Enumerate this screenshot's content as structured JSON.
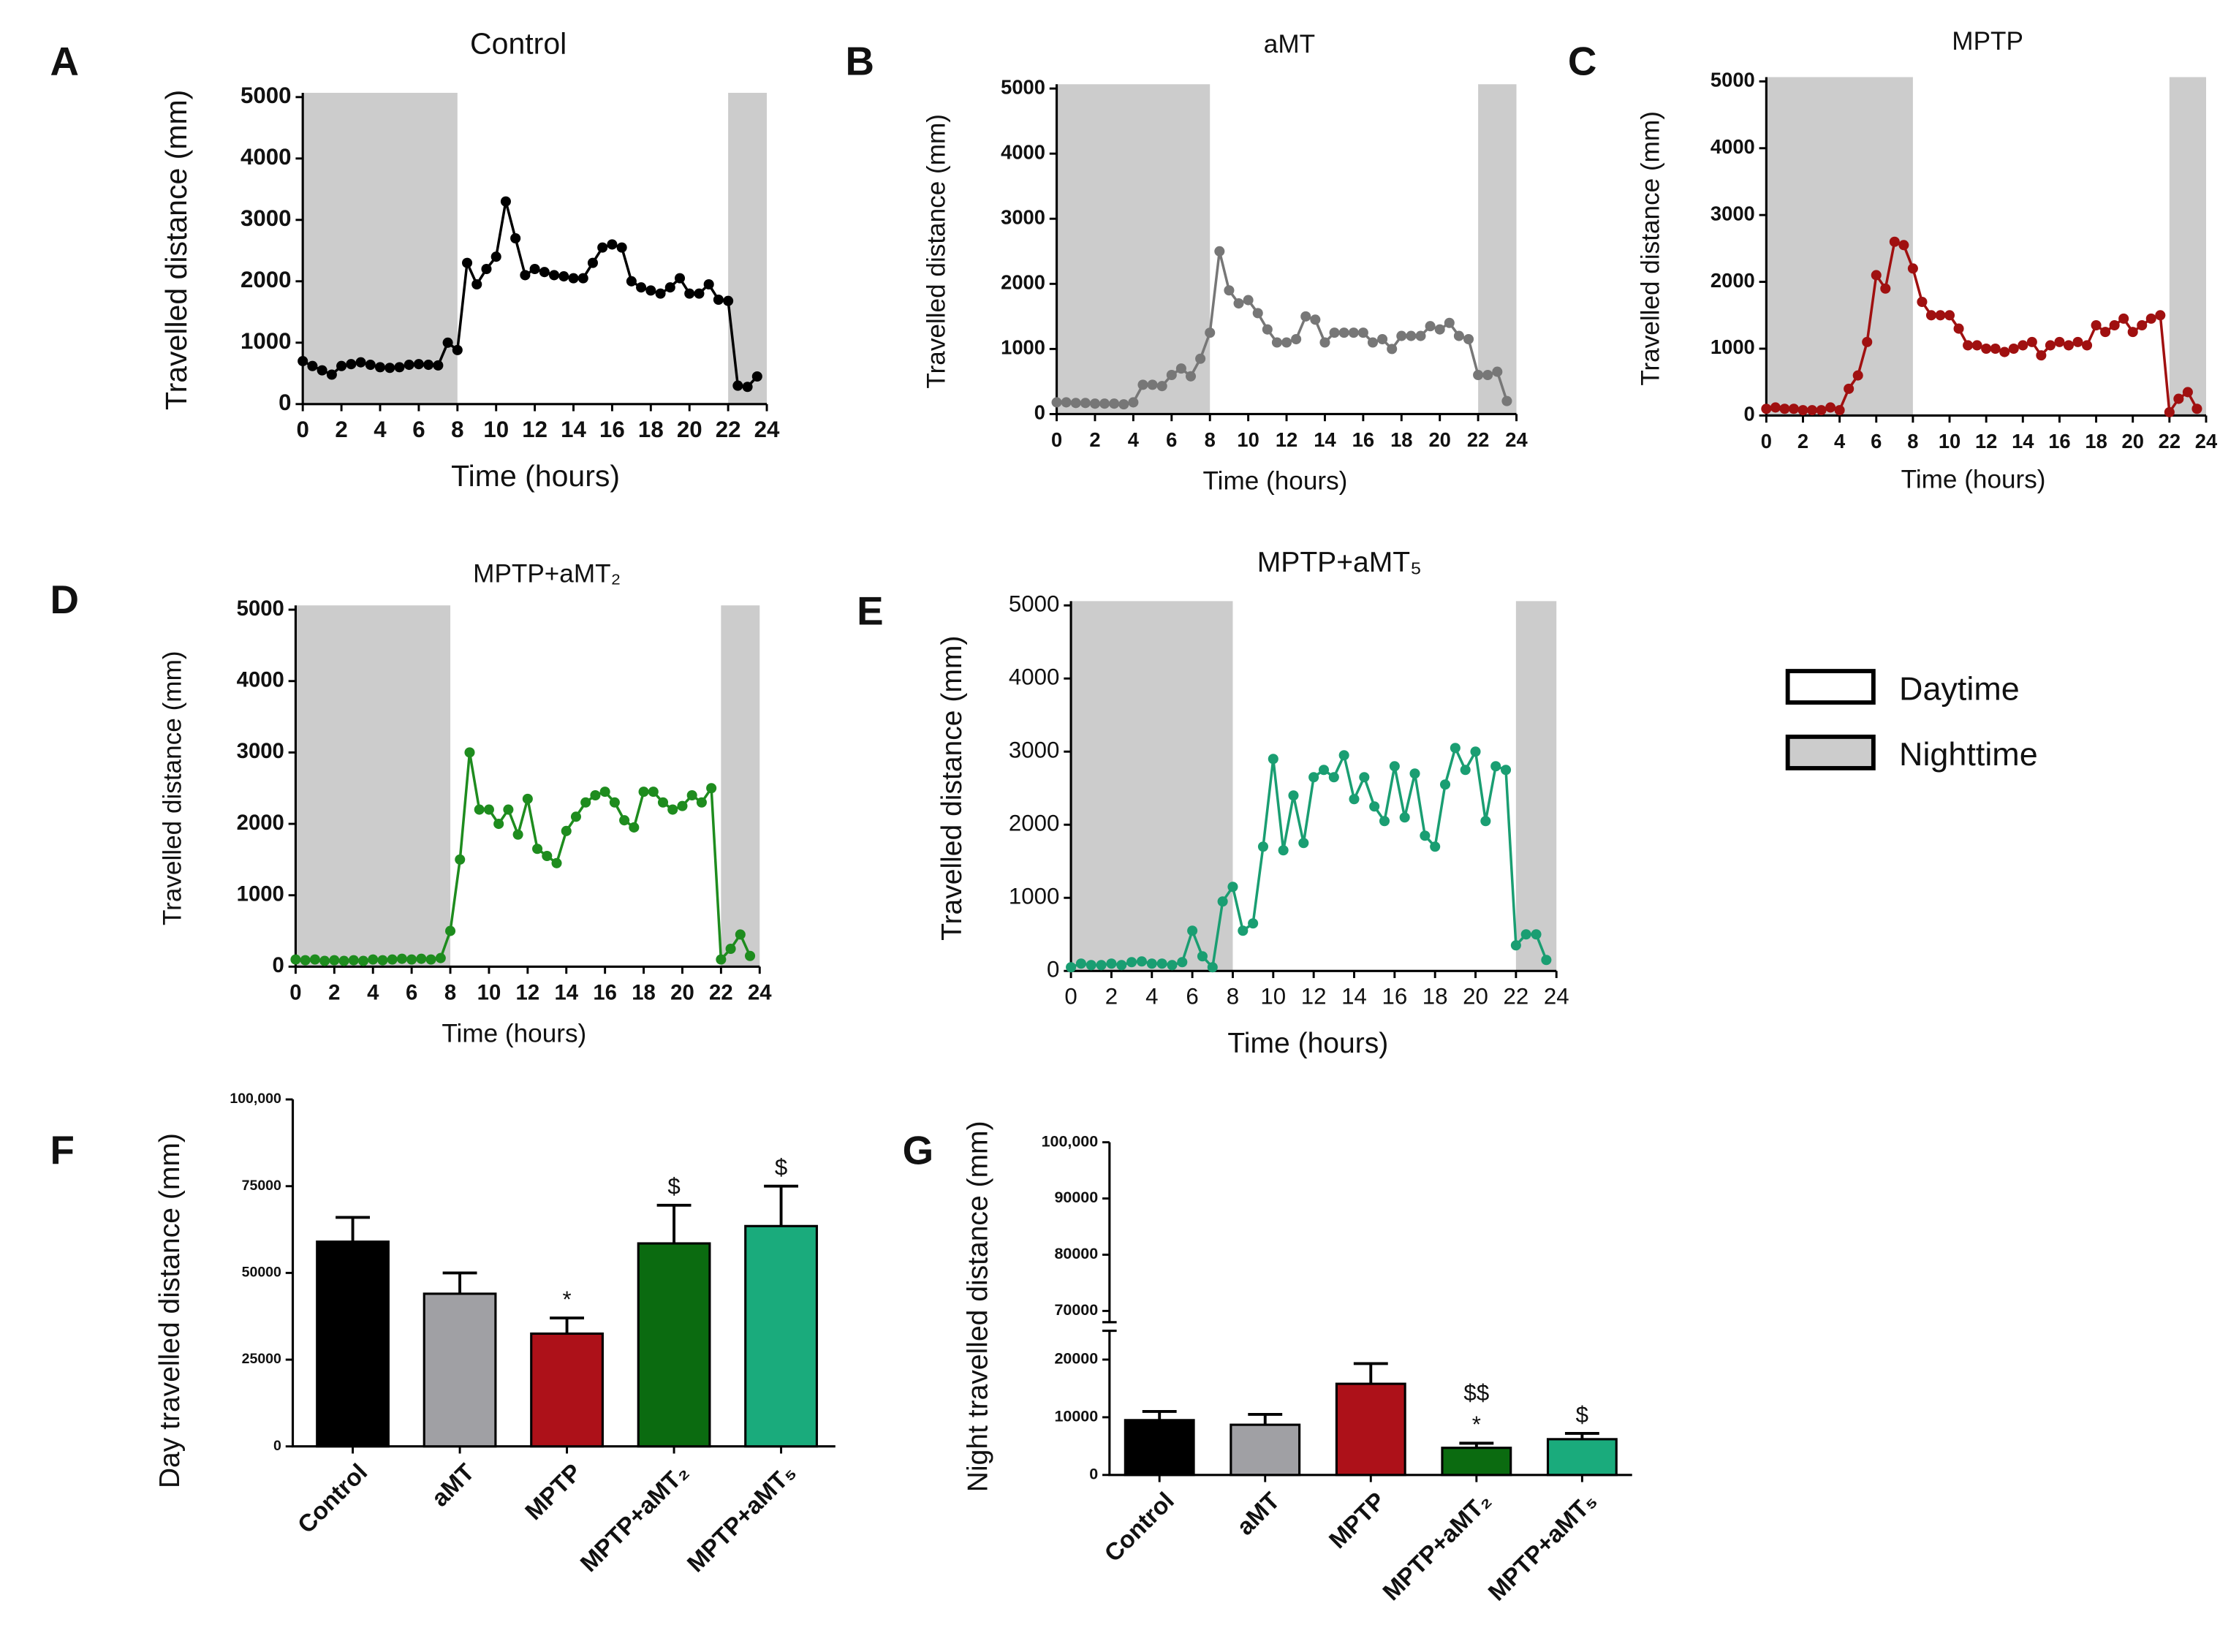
{
  "chart_data": [
    {
      "type": "line",
      "panel": "A",
      "title": "Control",
      "y_label": "Travelled distance (mm)",
      "x_label": "Time (hours)",
      "color": "#000000",
      "shade_color": "#cccccc",
      "shaded": [
        [
          0,
          8
        ],
        [
          22,
          24
        ]
      ],
      "xlim": [
        0,
        24
      ],
      "xticks": [
        0,
        2,
        4,
        6,
        8,
        10,
        12,
        14,
        16,
        18,
        20,
        22,
        24
      ],
      "ylim": [
        0,
        5000
      ],
      "yticks": [
        0,
        1000,
        2000,
        3000,
        4000,
        5000
      ],
      "x": [
        0,
        0.5,
        1,
        1.5,
        2,
        2.5,
        3,
        3.5,
        4,
        4.5,
        5,
        5.5,
        6,
        6.5,
        7,
        7.5,
        8,
        8.5,
        9,
        9.5,
        10,
        10.5,
        11,
        11.5,
        12,
        12.5,
        13,
        13.5,
        14,
        14.5,
        15,
        15.5,
        16,
        16.5,
        17,
        17.5,
        18,
        18.5,
        19,
        19.5,
        20,
        20.5,
        21,
        21.5,
        22,
        22.5,
        23,
        23.5
      ],
      "values": [
        700,
        620,
        550,
        480,
        620,
        650,
        680,
        640,
        600,
        590,
        600,
        640,
        650,
        640,
        630,
        1000,
        880,
        2300,
        1950,
        2200,
        2400,
        3300,
        2700,
        2100,
        2200,
        2150,
        2100,
        2080,
        2050,
        2050,
        2300,
        2550,
        2600,
        2550,
        2000,
        1900,
        1850,
        1800,
        1900,
        2050,
        1800,
        1800,
        1950,
        1700,
        1680,
        300,
        280,
        450
      ]
    },
    {
      "type": "line",
      "panel": "B",
      "title": "aMT",
      "y_label": "Travelled distance (mm)",
      "x_label": "Time (hours)",
      "color": "#777777",
      "shade_color": "#cccccc",
      "shaded": [
        [
          0,
          8
        ],
        [
          22,
          24
        ]
      ],
      "xlim": [
        0,
        24
      ],
      "xticks": [
        0,
        2,
        4,
        6,
        8,
        10,
        12,
        14,
        16,
        18,
        20,
        22,
        24
      ],
      "ylim": [
        0,
        5000
      ],
      "yticks": [
        0,
        1000,
        2000,
        3000,
        4000,
        5000
      ],
      "x": [
        0,
        0.5,
        1,
        1.5,
        2,
        2.5,
        3,
        3.5,
        4,
        4.5,
        5,
        5.5,
        6,
        6.5,
        7,
        7.5,
        8,
        8.5,
        9,
        9.5,
        10,
        10.5,
        11,
        11.5,
        12,
        12.5,
        13,
        13.5,
        14,
        14.5,
        15,
        15.5,
        16,
        16.5,
        17,
        17.5,
        18,
        18.5,
        19,
        19.5,
        20,
        20.5,
        21,
        21.5,
        22,
        22.5,
        23,
        23.5
      ],
      "values": [
        180,
        180,
        170,
        170,
        160,
        160,
        160,
        150,
        180,
        450,
        450,
        430,
        600,
        700,
        580,
        850,
        1250,
        2500,
        1900,
        1700,
        1750,
        1550,
        1300,
        1100,
        1100,
        1150,
        1500,
        1450,
        1100,
        1250,
        1250,
        1250,
        1250,
        1100,
        1150,
        1000,
        1200,
        1200,
        1200,
        1350,
        1300,
        1400,
        1200,
        1150,
        600,
        600,
        650,
        200
      ]
    },
    {
      "type": "line",
      "panel": "C",
      "title": "MPTP",
      "y_label": "Travelled distance (mm)",
      "x_label": "Time (hours)",
      "color": "#a01010",
      "shade_color": "#cccccc",
      "shaded": [
        [
          0,
          8
        ],
        [
          22,
          24
        ]
      ],
      "xlim": [
        0,
        24
      ],
      "xticks": [
        0,
        2,
        4,
        6,
        8,
        10,
        12,
        14,
        16,
        18,
        20,
        22,
        24
      ],
      "ylim": [
        0,
        5000
      ],
      "yticks": [
        0,
        1000,
        2000,
        3000,
        4000,
        5000
      ],
      "x": [
        0,
        0.5,
        1,
        1.5,
        2,
        2.5,
        3,
        3.5,
        4,
        4.5,
        5,
        5.5,
        6,
        6.5,
        7,
        7.5,
        8,
        8.5,
        9,
        9.5,
        10,
        10.5,
        11,
        11.5,
        12,
        12.5,
        13,
        13.5,
        14,
        14.5,
        15,
        15.5,
        16,
        16.5,
        17,
        17.5,
        18,
        18.5,
        19,
        19.5,
        20,
        20.5,
        21,
        21.5,
        22,
        22.5,
        23,
        23.5
      ],
      "values": [
        100,
        120,
        100,
        100,
        80,
        80,
        80,
        120,
        80,
        400,
        600,
        1100,
        2100,
        1900,
        2600,
        2550,
        2200,
        1700,
        1500,
        1500,
        1500,
        1300,
        1050,
        1050,
        1000,
        1000,
        950,
        1000,
        1050,
        1100,
        900,
        1050,
        1100,
        1050,
        1100,
        1050,
        1350,
        1250,
        1350,
        1450,
        1250,
        1350,
        1450,
        1500,
        50,
        250,
        350,
        100
      ]
    },
    {
      "type": "line",
      "panel": "D",
      "title": "MPTP+aMT₂",
      "y_label": "Travelled distance (mm)",
      "x_label": "Time (hours)",
      "color": "#1e8c1e",
      "shade_color": "#cccccc",
      "shaded": [
        [
          0,
          8
        ],
        [
          22,
          24
        ]
      ],
      "xlim": [
        0,
        24
      ],
      "xticks": [
        0,
        2,
        4,
        6,
        8,
        10,
        12,
        14,
        16,
        18,
        20,
        22,
        24
      ],
      "ylim": [
        0,
        5000
      ],
      "yticks": [
        0,
        1000,
        2000,
        3000,
        4000,
        5000
      ],
      "x": [
        0,
        0.5,
        1,
        1.5,
        2,
        2.5,
        3,
        3.5,
        4,
        4.5,
        5,
        5.5,
        6,
        6.5,
        7,
        7.5,
        8,
        8.5,
        9,
        9.5,
        10,
        10.5,
        11,
        11.5,
        12,
        12.5,
        13,
        13.5,
        14,
        14.5,
        15,
        15.5,
        16,
        16.5,
        17,
        17.5,
        18,
        18.5,
        19,
        19.5,
        20,
        20.5,
        21,
        21.5,
        22,
        22.5,
        23,
        23.5
      ],
      "values": [
        100,
        90,
        100,
        80,
        90,
        80,
        90,
        80,
        100,
        90,
        100,
        110,
        100,
        110,
        100,
        120,
        500,
        1500,
        3000,
        2200,
        2200,
        2000,
        2200,
        1850,
        2350,
        1650,
        1550,
        1450,
        1900,
        2100,
        2300,
        2400,
        2450,
        2300,
        2050,
        1950,
        2450,
        2450,
        2300,
        2200,
        2250,
        2400,
        2300,
        2500,
        100,
        250,
        450,
        150
      ]
    },
    {
      "type": "line",
      "panel": "E",
      "title": "MPTP+aMT₅",
      "y_label": "Travelled distance (mm)",
      "x_label": "Time (hours)",
      "color": "#1a9e72",
      "shade_color": "#cccccc",
      "shaded": [
        [
          0,
          8
        ],
        [
          22,
          24
        ]
      ],
      "xlim": [
        0,
        24
      ],
      "xticks": [
        0,
        2,
        4,
        6,
        8,
        10,
        12,
        14,
        16,
        18,
        20,
        22,
        24
      ],
      "ylim": [
        0,
        5000
      ],
      "yticks": [
        0,
        1000,
        2000,
        3000,
        4000,
        5000
      ],
      "x": [
        0,
        0.5,
        1,
        1.5,
        2,
        2.5,
        3,
        3.5,
        4,
        4.5,
        5,
        5.5,
        6,
        6.5,
        7,
        7.5,
        8,
        8.5,
        9,
        9.5,
        10,
        10.5,
        11,
        11.5,
        12,
        12.5,
        13,
        13.5,
        14,
        14.5,
        15,
        15.5,
        16,
        16.5,
        17,
        17.5,
        18,
        18.5,
        19,
        19.5,
        20,
        20.5,
        21,
        21.5,
        22,
        22.5,
        23,
        23.5
      ],
      "values": [
        50,
        100,
        80,
        80,
        100,
        80,
        120,
        130,
        100,
        100,
        80,
        120,
        550,
        200,
        50,
        950,
        1150,
        550,
        650,
        1700,
        2900,
        1650,
        2400,
        1750,
        2650,
        2750,
        2650,
        2950,
        2350,
        2650,
        2250,
        2050,
        2800,
        2100,
        2700,
        1850,
        1700,
        2550,
        3050,
        2750,
        3000,
        2050,
        2800,
        2750,
        350,
        500,
        500,
        150
      ]
    },
    {
      "type": "bar",
      "panel": "F",
      "y_label": "Day travelled distance (mm)",
      "categories": [
        "Control",
        "aMT",
        "MPTP",
        "MPTP+aMT₂",
        "MPTP+aMT₅"
      ],
      "values": [
        59000,
        44000,
        32500,
        58500,
        63500
      ],
      "errors": [
        7000,
        6000,
        4500,
        11000,
        11500
      ],
      "colors": [
        "#000000",
        "#a0a0a4",
        "#ad1119",
        "#0b6b10",
        "#1aab7c"
      ],
      "annotations": [
        {
          "index": 2,
          "text": "*"
        },
        {
          "index": 3,
          "text": "$"
        },
        {
          "index": 4,
          "text": "$"
        }
      ],
      "ylim": [
        0,
        100000
      ],
      "yticks": [
        0,
        25000,
        50000,
        75000,
        {
          "value": 100000,
          "label": "100,000"
        }
      ]
    },
    {
      "type": "bar",
      "panel": "G",
      "y_label": "Night travelled distance (mm)",
      "categories": [
        "Control",
        "aMT",
        "MPTP",
        "MPTP+aMT₂",
        "MPTP+aMT₅"
      ],
      "values": [
        9500,
        8700,
        15800,
        4700,
        6200
      ],
      "errors": [
        1500,
        1800,
        3500,
        800,
        1000
      ],
      "colors": [
        "#000000",
        "#a0a0a4",
        "#ad1119",
        "#0b6b10",
        "#1aab7c"
      ],
      "annotations": [
        {
          "index": 3,
          "text": "*"
        },
        {
          "index": 3,
          "text": "$$"
        },
        {
          "index": 4,
          "text": "$"
        }
      ],
      "ylim": [
        0,
        100000
      ],
      "ybreak": [
        25000,
        68000
      ],
      "yticks": [
        0,
        10000,
        20000,
        70000,
        80000,
        90000,
        {
          "value": 100000,
          "label": "100,000"
        }
      ]
    }
  ],
  "legend": {
    "items": [
      {
        "name": "Daytime",
        "color": "#ffffff"
      },
      {
        "name": "Nighttime",
        "color": "#cccccc"
      }
    ]
  }
}
